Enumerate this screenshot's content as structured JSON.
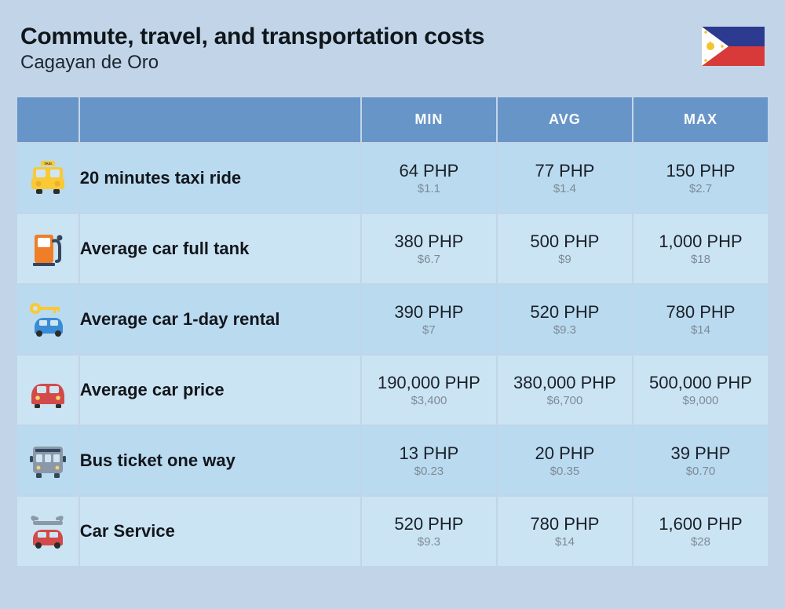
{
  "header": {
    "title": "Commute, travel, and transportation costs",
    "subtitle": "Cagayan de Oro"
  },
  "flag": {
    "top_color": "#2c3a8f",
    "bottom_color": "#d83a3a",
    "triangle_color": "#ffffff",
    "sun_color": "#f4c430"
  },
  "columns": {
    "min": "MIN",
    "avg": "AVG",
    "max": "MAX"
  },
  "rows": [
    {
      "icon": "taxi",
      "label": "20 minutes taxi ride",
      "min_primary": "64 PHP",
      "min_secondary": "$1.1",
      "avg_primary": "77 PHP",
      "avg_secondary": "$1.4",
      "max_primary": "150 PHP",
      "max_secondary": "$2.7"
    },
    {
      "icon": "fuel-pump",
      "label": "Average car full tank",
      "min_primary": "380 PHP",
      "min_secondary": "$6.7",
      "avg_primary": "500 PHP",
      "avg_secondary": "$9",
      "max_primary": "1,000 PHP",
      "max_secondary": "$18"
    },
    {
      "icon": "car-rental",
      "label": "Average car 1-day rental",
      "min_primary": "390 PHP",
      "min_secondary": "$7",
      "avg_primary": "520 PHP",
      "avg_secondary": "$9.3",
      "max_primary": "780 PHP",
      "max_secondary": "$14"
    },
    {
      "icon": "car-price",
      "label": "Average car price",
      "min_primary": "190,000 PHP",
      "min_secondary": "$3,400",
      "avg_primary": "380,000 PHP",
      "avg_secondary": "$6,700",
      "max_primary": "500,000 PHP",
      "max_secondary": "$9,000"
    },
    {
      "icon": "bus",
      "label": "Bus ticket one way",
      "min_primary": "13 PHP",
      "min_secondary": "$0.23",
      "avg_primary": "20 PHP",
      "avg_secondary": "$0.35",
      "max_primary": "39 PHP",
      "max_secondary": "$0.70"
    },
    {
      "icon": "car-service",
      "label": "Car Service",
      "min_primary": "520 PHP",
      "min_secondary": "$9.3",
      "avg_primary": "780 PHP",
      "avg_secondary": "$14",
      "max_primary": "1,600 PHP",
      "max_secondary": "$28"
    }
  ],
  "styling": {
    "page_bg": "#c2d5e8",
    "header_cell_bg": "#6795c7",
    "row_odd_bg": "#badaef",
    "row_even_bg": "#cbe4f4",
    "primary_text_color": "#1a2028",
    "secondary_text_color": "#7d8b97",
    "title_color": "#0f161c",
    "header_text_color": "#ffffff",
    "title_fontsize": 30,
    "subtitle_fontsize": 24,
    "label_fontsize": 22,
    "primary_val_fontsize": 22,
    "secondary_val_fontsize": 15,
    "column_header_fontsize": 18,
    "icon_colors": {
      "taxi": {
        "body": "#f9c936",
        "dark": "#2c2c2c"
      },
      "fuel": {
        "body": "#f07e27",
        "accent": "#35465f"
      },
      "rental": {
        "car": "#3a8cd6",
        "key": "#f9c936"
      },
      "car": {
        "body": "#d24a4a",
        "dark": "#2c2c2c"
      },
      "bus": {
        "body": "#8a98a7",
        "dark": "#35465f"
      },
      "service": {
        "car": "#d24a4a",
        "wrench": "#8a98a7"
      }
    }
  }
}
